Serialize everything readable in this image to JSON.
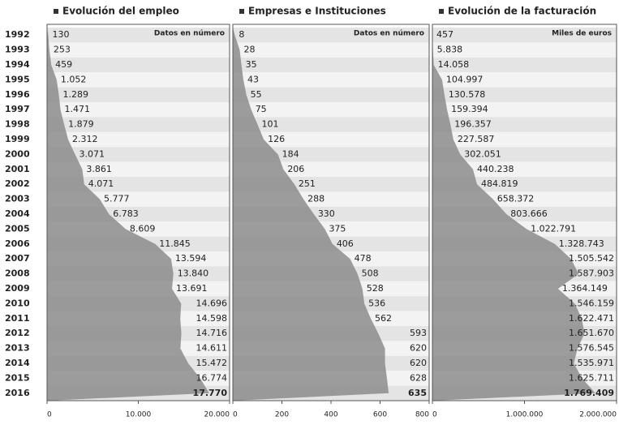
{
  "chart_data": [
    {
      "type": "area",
      "orientation": "horizontal",
      "title": "Evolución del empleo",
      "annotation": "Datos en número",
      "color": "#8c8c8c",
      "categories": [
        "1992",
        "1993",
        "1994",
        "1995",
        "1996",
        "1997",
        "1998",
        "1999",
        "2000",
        "2001",
        "2002",
        "2003",
        "2004",
        "2005",
        "2006",
        "2007",
        "2008",
        "2009",
        "2010",
        "2011",
        "2012",
        "2013",
        "2014",
        "2015",
        "2016"
      ],
      "values": [
        130,
        253,
        459,
        1052,
        1289,
        1471,
        1879,
        2312,
        3071,
        3861,
        4071,
        5777,
        6783,
        8609,
        11845,
        13594,
        13840,
        13691,
        14696,
        14598,
        14716,
        14611,
        15472,
        16774,
        17770
      ],
      "value_labels": [
        "130",
        "253",
        "459",
        "1.052",
        "1.289",
        "1.471",
        "1.879",
        "2.312",
        "3.071",
        "3.861",
        "4.071",
        "5.777",
        "6.783",
        "8.609",
        "11.845",
        "13.594",
        "13.840",
        "13.691",
        "14.696",
        "14.598",
        "14.716",
        "14.611",
        "15.472",
        "16.774",
        "17.770"
      ],
      "xlim": [
        0,
        20000
      ],
      "xticks": [
        0,
        {
          "value": 10000,
          "label": "10.000"
        },
        {
          "value": 20000,
          "label": "20.000"
        }
      ]
    },
    {
      "type": "area",
      "orientation": "horizontal",
      "title": "Empresas e Instituciones",
      "annotation": "Datos en número",
      "color": "#8c8c8c",
      "values": [
        8,
        28,
        35,
        43,
        55,
        75,
        101,
        126,
        184,
        206,
        251,
        288,
        330,
        375,
        406,
        478,
        508,
        528,
        536,
        562,
        593,
        620,
        620,
        628,
        635
      ],
      "xlim": [
        0,
        800
      ],
      "xticks": [
        0,
        200,
        400,
        600,
        800
      ]
    },
    {
      "type": "area",
      "orientation": "horizontal",
      "title": "Evolución de la facturación",
      "annotation": "Miles de euros",
      "color": "#8c8c8c",
      "values": [
        457,
        5838,
        14058,
        104997,
        130578,
        159394,
        196357,
        227587,
        302051,
        440238,
        484819,
        658372,
        803666,
        1022791,
        1328743,
        1505542,
        1587903,
        1364149,
        1546159,
        1622471,
        1651670,
        1576545,
        1535971,
        1625711,
        1769409
      ],
      "value_labels": [
        "457",
        "5.838",
        "14.058",
        "104.997",
        "130.578",
        "159.394",
        "196.357",
        "227.587",
        "302.051",
        "440.238",
        "484.819",
        "658.372",
        "803.666",
        "1.022.791",
        "1.328.743",
        "1.505.542",
        "1.587.903",
        "1.364.149",
        "1.546.159",
        "1.622.471",
        "1.651.670",
        "1.576.545",
        "1.535.971",
        "1.625.711",
        "1.769.409"
      ],
      "xlim": [
        0,
        2000000
      ],
      "xticks": [
        0,
        {
          "value": 1000000,
          "label": "1.000.000"
        },
        {
          "value": 2000000,
          "label": "2.000.000"
        }
      ]
    }
  ]
}
